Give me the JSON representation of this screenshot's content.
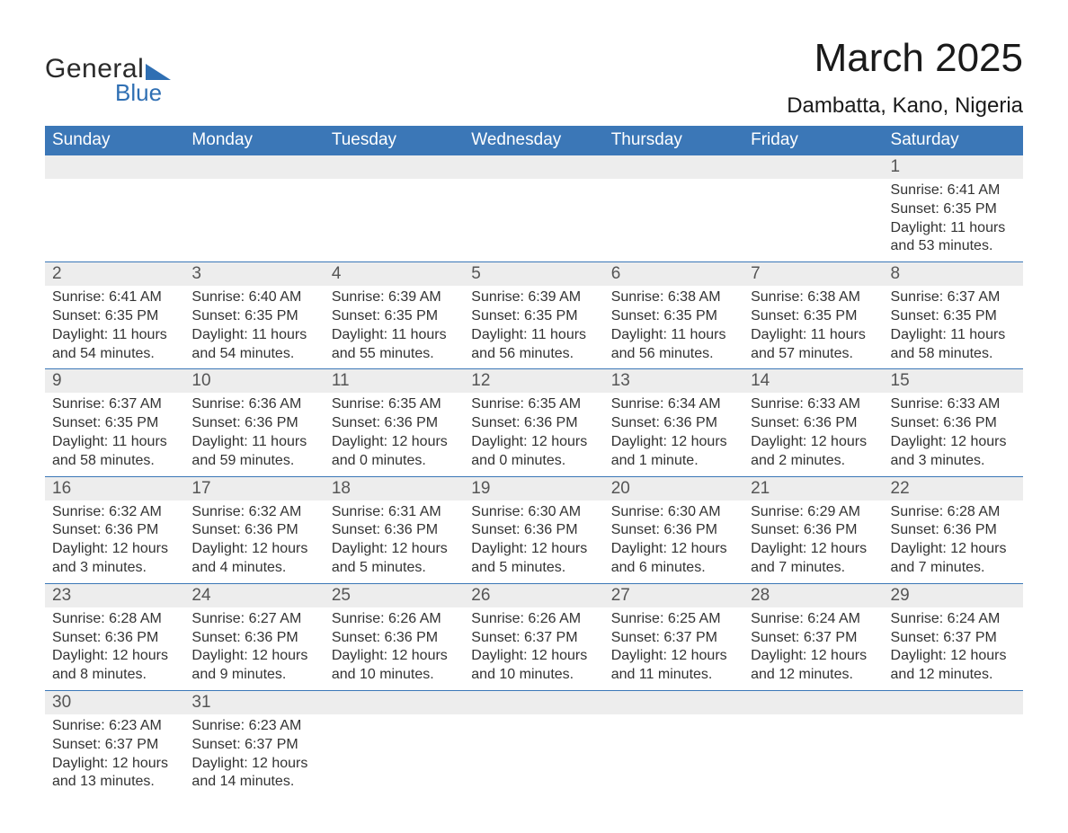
{
  "logo": {
    "line1": "General",
    "line2": "Blue"
  },
  "title": "March 2025",
  "location": "Dambatta, Kano, Nigeria",
  "colors": {
    "header_bg": "#3b77b7",
    "header_text": "#ffffff",
    "daynum_bg": "#ededed",
    "border": "#3b77b7",
    "logo_accent": "#2f6fb3"
  },
  "weekdays": [
    "Sunday",
    "Monday",
    "Tuesday",
    "Wednesday",
    "Thursday",
    "Friday",
    "Saturday"
  ],
  "weeks": [
    {
      "days": [
        null,
        null,
        null,
        null,
        null,
        null,
        {
          "n": "1",
          "sunrise": "Sunrise: 6:41 AM",
          "sunset": "Sunset: 6:35 PM",
          "daylight1": "Daylight: 11 hours",
          "daylight2": "and 53 minutes."
        }
      ]
    },
    {
      "days": [
        {
          "n": "2",
          "sunrise": "Sunrise: 6:41 AM",
          "sunset": "Sunset: 6:35 PM",
          "daylight1": "Daylight: 11 hours",
          "daylight2": "and 54 minutes."
        },
        {
          "n": "3",
          "sunrise": "Sunrise: 6:40 AM",
          "sunset": "Sunset: 6:35 PM",
          "daylight1": "Daylight: 11 hours",
          "daylight2": "and 54 minutes."
        },
        {
          "n": "4",
          "sunrise": "Sunrise: 6:39 AM",
          "sunset": "Sunset: 6:35 PM",
          "daylight1": "Daylight: 11 hours",
          "daylight2": "and 55 minutes."
        },
        {
          "n": "5",
          "sunrise": "Sunrise: 6:39 AM",
          "sunset": "Sunset: 6:35 PM",
          "daylight1": "Daylight: 11 hours",
          "daylight2": "and 56 minutes."
        },
        {
          "n": "6",
          "sunrise": "Sunrise: 6:38 AM",
          "sunset": "Sunset: 6:35 PM",
          "daylight1": "Daylight: 11 hours",
          "daylight2": "and 56 minutes."
        },
        {
          "n": "7",
          "sunrise": "Sunrise: 6:38 AM",
          "sunset": "Sunset: 6:35 PM",
          "daylight1": "Daylight: 11 hours",
          "daylight2": "and 57 minutes."
        },
        {
          "n": "8",
          "sunrise": "Sunrise: 6:37 AM",
          "sunset": "Sunset: 6:35 PM",
          "daylight1": "Daylight: 11 hours",
          "daylight2": "and 58 minutes."
        }
      ]
    },
    {
      "days": [
        {
          "n": "9",
          "sunrise": "Sunrise: 6:37 AM",
          "sunset": "Sunset: 6:35 PM",
          "daylight1": "Daylight: 11 hours",
          "daylight2": "and 58 minutes."
        },
        {
          "n": "10",
          "sunrise": "Sunrise: 6:36 AM",
          "sunset": "Sunset: 6:36 PM",
          "daylight1": "Daylight: 11 hours",
          "daylight2": "and 59 minutes."
        },
        {
          "n": "11",
          "sunrise": "Sunrise: 6:35 AM",
          "sunset": "Sunset: 6:36 PM",
          "daylight1": "Daylight: 12 hours",
          "daylight2": "and 0 minutes."
        },
        {
          "n": "12",
          "sunrise": "Sunrise: 6:35 AM",
          "sunset": "Sunset: 6:36 PM",
          "daylight1": "Daylight: 12 hours",
          "daylight2": "and 0 minutes."
        },
        {
          "n": "13",
          "sunrise": "Sunrise: 6:34 AM",
          "sunset": "Sunset: 6:36 PM",
          "daylight1": "Daylight: 12 hours",
          "daylight2": "and 1 minute."
        },
        {
          "n": "14",
          "sunrise": "Sunrise: 6:33 AM",
          "sunset": "Sunset: 6:36 PM",
          "daylight1": "Daylight: 12 hours",
          "daylight2": "and 2 minutes."
        },
        {
          "n": "15",
          "sunrise": "Sunrise: 6:33 AM",
          "sunset": "Sunset: 6:36 PM",
          "daylight1": "Daylight: 12 hours",
          "daylight2": "and 3 minutes."
        }
      ]
    },
    {
      "days": [
        {
          "n": "16",
          "sunrise": "Sunrise: 6:32 AM",
          "sunset": "Sunset: 6:36 PM",
          "daylight1": "Daylight: 12 hours",
          "daylight2": "and 3 minutes."
        },
        {
          "n": "17",
          "sunrise": "Sunrise: 6:32 AM",
          "sunset": "Sunset: 6:36 PM",
          "daylight1": "Daylight: 12 hours",
          "daylight2": "and 4 minutes."
        },
        {
          "n": "18",
          "sunrise": "Sunrise: 6:31 AM",
          "sunset": "Sunset: 6:36 PM",
          "daylight1": "Daylight: 12 hours",
          "daylight2": "and 5 minutes."
        },
        {
          "n": "19",
          "sunrise": "Sunrise: 6:30 AM",
          "sunset": "Sunset: 6:36 PM",
          "daylight1": "Daylight: 12 hours",
          "daylight2": "and 5 minutes."
        },
        {
          "n": "20",
          "sunrise": "Sunrise: 6:30 AM",
          "sunset": "Sunset: 6:36 PM",
          "daylight1": "Daylight: 12 hours",
          "daylight2": "and 6 minutes."
        },
        {
          "n": "21",
          "sunrise": "Sunrise: 6:29 AM",
          "sunset": "Sunset: 6:36 PM",
          "daylight1": "Daylight: 12 hours",
          "daylight2": "and 7 minutes."
        },
        {
          "n": "22",
          "sunrise": "Sunrise: 6:28 AM",
          "sunset": "Sunset: 6:36 PM",
          "daylight1": "Daylight: 12 hours",
          "daylight2": "and 7 minutes."
        }
      ]
    },
    {
      "days": [
        {
          "n": "23",
          "sunrise": "Sunrise: 6:28 AM",
          "sunset": "Sunset: 6:36 PM",
          "daylight1": "Daylight: 12 hours",
          "daylight2": "and 8 minutes."
        },
        {
          "n": "24",
          "sunrise": "Sunrise: 6:27 AM",
          "sunset": "Sunset: 6:36 PM",
          "daylight1": "Daylight: 12 hours",
          "daylight2": "and 9 minutes."
        },
        {
          "n": "25",
          "sunrise": "Sunrise: 6:26 AM",
          "sunset": "Sunset: 6:36 PM",
          "daylight1": "Daylight: 12 hours",
          "daylight2": "and 10 minutes."
        },
        {
          "n": "26",
          "sunrise": "Sunrise: 6:26 AM",
          "sunset": "Sunset: 6:37 PM",
          "daylight1": "Daylight: 12 hours",
          "daylight2": "and 10 minutes."
        },
        {
          "n": "27",
          "sunrise": "Sunrise: 6:25 AM",
          "sunset": "Sunset: 6:37 PM",
          "daylight1": "Daylight: 12 hours",
          "daylight2": "and 11 minutes."
        },
        {
          "n": "28",
          "sunrise": "Sunrise: 6:24 AM",
          "sunset": "Sunset: 6:37 PM",
          "daylight1": "Daylight: 12 hours",
          "daylight2": "and 12 minutes."
        },
        {
          "n": "29",
          "sunrise": "Sunrise: 6:24 AM",
          "sunset": "Sunset: 6:37 PM",
          "daylight1": "Daylight: 12 hours",
          "daylight2": "and 12 minutes."
        }
      ]
    },
    {
      "days": [
        {
          "n": "30",
          "sunrise": "Sunrise: 6:23 AM",
          "sunset": "Sunset: 6:37 PM",
          "daylight1": "Daylight: 12 hours",
          "daylight2": "and 13 minutes."
        },
        {
          "n": "31",
          "sunrise": "Sunrise: 6:23 AM",
          "sunset": "Sunset: 6:37 PM",
          "daylight1": "Daylight: 12 hours",
          "daylight2": "and 14 minutes."
        },
        null,
        null,
        null,
        null,
        null
      ]
    }
  ]
}
